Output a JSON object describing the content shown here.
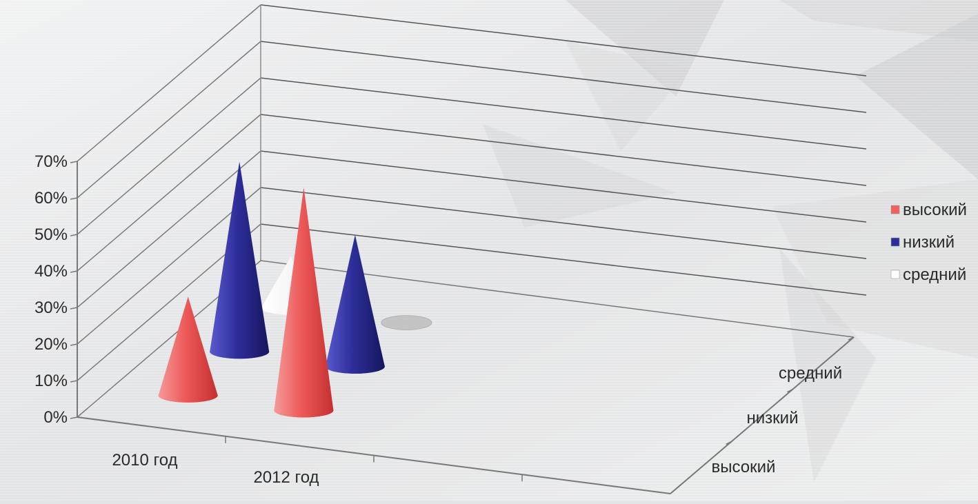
{
  "chart_data": {
    "type": "3d-cone",
    "categories": [
      "2010 год",
      "2012 год"
    ],
    "series": [
      {
        "name": "высокий",
        "values": [
          27,
          61
        ],
        "color": "#f06060"
      },
      {
        "name": "низкий",
        "values": [
          52,
          36
        ],
        "color": "#2e2e9a"
      },
      {
        "name": "средний",
        "values": [
          14,
          0
        ],
        "color": "#ffffff"
      }
    ],
    "y_ticks": [
      "0%",
      "10%",
      "20%",
      "30%",
      "40%",
      "50%",
      "60%",
      "70%"
    ],
    "y_range": [
      0,
      70
    ],
    "depth_labels": [
      "высокий",
      "низкий",
      "средний"
    ],
    "legend_position": "right",
    "grid": true
  }
}
